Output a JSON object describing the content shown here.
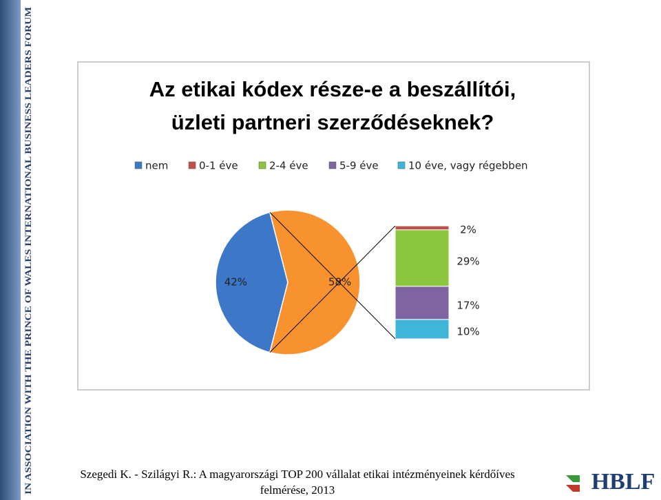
{
  "sidebar": "IN ASSOCIATION WITH THE PRINCE OF WALES INTERNATIONAL BUSINESS LEADERS FORUM",
  "chart_data": {
    "type": "bar-of-pie",
    "title": [
      "Az etikai kódex része-e a beszállítói,",
      "üzleti partneri szerződéseknek?"
    ],
    "categories": [
      "nem",
      "0-1 éve",
      "2-4 éve",
      "5-9 éve",
      "10 éve, vagy régebben"
    ],
    "colors": [
      "#3d78c8",
      "#c0504d",
      "#8cc63f",
      "#8064a2",
      "#3fb6d8"
    ],
    "pie": {
      "values": [
        42,
        58
      ],
      "value_labels": [
        "42%",
        "58%"
      ],
      "other_color": "#f7922e"
    },
    "bar": {
      "values": [
        2,
        29,
        17,
        10
      ],
      "value_labels": [
        "2%",
        "29%",
        "17%",
        "10%"
      ]
    }
  },
  "footer": [
    "Szegedi K. - Szilágyi R.: A magyarországi TOP 200 vállalat etikai intézményeinek kérdőíves",
    "felmérése, 2013"
  ],
  "logo": "HBLF"
}
